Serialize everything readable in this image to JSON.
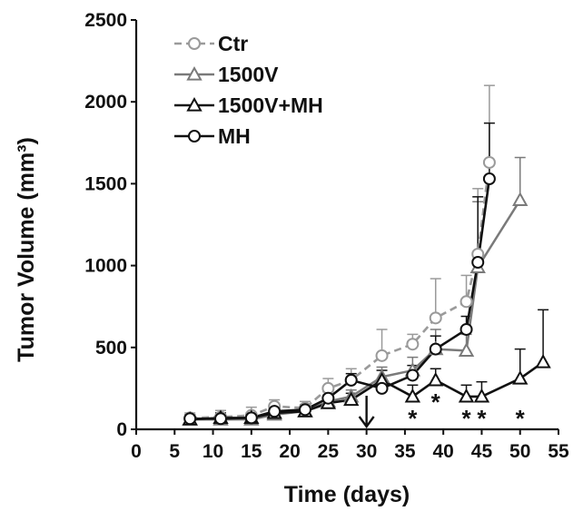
{
  "chart_data": {
    "type": "line",
    "title": "",
    "xlabel": "Time (days)",
    "ylabel": "Tumor Volume (mm³)",
    "xlim": [
      0,
      55
    ],
    "ylim": [
      0,
      2500
    ],
    "x_ticks": [
      0,
      5,
      10,
      15,
      20,
      25,
      30,
      35,
      40,
      45,
      50,
      55
    ],
    "y_ticks": [
      0,
      500,
      1000,
      1500,
      2000,
      2500
    ],
    "grid": false,
    "legend_position": "top-left",
    "series": [
      {
        "name": "Ctr",
        "color": "#9a9a9a",
        "line_style": "dashed",
        "marker": "circle",
        "points": [
          {
            "x": 7,
            "y": 70,
            "err": 30
          },
          {
            "x": 11,
            "y": 75,
            "err": 40
          },
          {
            "x": 15,
            "y": 85,
            "err": 50
          },
          {
            "x": 18,
            "y": 140,
            "err": 40
          },
          {
            "x": 22,
            "y": 130,
            "err": 40
          },
          {
            "x": 25,
            "y": 250,
            "err": 60
          },
          {
            "x": 28,
            "y": 300,
            "err": 70
          },
          {
            "x": 32,
            "y": 450,
            "err": 160
          },
          {
            "x": 36,
            "y": 520,
            "err": 60
          },
          {
            "x": 39,
            "y": 680,
            "err": 240
          },
          {
            "x": 43,
            "y": 780,
            "err": 160
          },
          {
            "x": 44.5,
            "y": 1070,
            "err": 400
          },
          {
            "x": 46,
            "y": 1630,
            "err": 470
          }
        ]
      },
      {
        "name": "1500V",
        "color": "#7a7a7a",
        "line_style": "solid",
        "marker": "triangle",
        "points": [
          {
            "x": 7,
            "y": 60,
            "err": 30
          },
          {
            "x": 11,
            "y": 60,
            "err": 40
          },
          {
            "x": 15,
            "y": 60,
            "err": 40
          },
          {
            "x": 18,
            "y": 90,
            "err": 30
          },
          {
            "x": 22,
            "y": 110,
            "err": 30
          },
          {
            "x": 25,
            "y": 170,
            "err": 40
          },
          {
            "x": 28,
            "y": 200,
            "err": 40
          },
          {
            "x": 32,
            "y": 320,
            "err": 60
          },
          {
            "x": 36,
            "y": 360,
            "err": 80
          },
          {
            "x": 39,
            "y": 490,
            "err": 120
          },
          {
            "x": 43,
            "y": 480,
            "err": 100
          },
          {
            "x": 44.5,
            "y": 990,
            "err": 400
          },
          {
            "x": 50,
            "y": 1400,
            "err": 260
          }
        ]
      },
      {
        "name": "1500V+MH",
        "color": "#111111",
        "line_style": "solid",
        "marker": "triangle",
        "points": [
          {
            "x": 7,
            "y": 60,
            "err": 30
          },
          {
            "x": 11,
            "y": 70,
            "err": 30
          },
          {
            "x": 15,
            "y": 70,
            "err": 30
          },
          {
            "x": 18,
            "y": 100,
            "err": 30
          },
          {
            "x": 22,
            "y": 110,
            "err": 30
          },
          {
            "x": 25,
            "y": 160,
            "err": 30
          },
          {
            "x": 28,
            "y": 180,
            "err": 40
          },
          {
            "x": 32,
            "y": 300,
            "err": 60
          },
          {
            "x": 36,
            "y": 200,
            "err": 70
          },
          {
            "x": 39,
            "y": 300,
            "err": 70
          },
          {
            "x": 43,
            "y": 200,
            "err": 70
          },
          {
            "x": 45,
            "y": 200,
            "err": 90
          },
          {
            "x": 50,
            "y": 310,
            "err": 180
          },
          {
            "x": 53,
            "y": 410,
            "err": 320
          }
        ]
      },
      {
        "name": "MH",
        "color": "#111111",
        "line_style": "solid",
        "marker": "circle",
        "points": [
          {
            "x": 7,
            "y": 65,
            "err": 20
          },
          {
            "x": 11,
            "y": 65,
            "err": 30
          },
          {
            "x": 15,
            "y": 70,
            "err": 30
          },
          {
            "x": 18,
            "y": 110,
            "err": 30
          },
          {
            "x": 22,
            "y": 120,
            "err": 30
          },
          {
            "x": 25,
            "y": 190,
            "err": 40
          },
          {
            "x": 28,
            "y": 300,
            "err": 40
          },
          {
            "x": 32,
            "y": 250,
            "err": 50
          },
          {
            "x": 36,
            "y": 330,
            "err": 60
          },
          {
            "x": 39,
            "y": 490,
            "err": 80
          },
          {
            "x": 43,
            "y": 610,
            "err": 80
          },
          {
            "x": 44.5,
            "y": 1020,
            "err": 400
          },
          {
            "x": 46,
            "y": 1530,
            "err": 340
          }
        ]
      }
    ],
    "annotations": {
      "arrow_x": 30,
      "asterisks": [
        {
          "text": "*",
          "x": 36
        },
        {
          "text": "*",
          "x": 39
        },
        {
          "text": "*",
          "x": 43
        },
        {
          "text": "*",
          "x": 45
        },
        {
          "text": "*",
          "x": 50
        }
      ]
    }
  }
}
